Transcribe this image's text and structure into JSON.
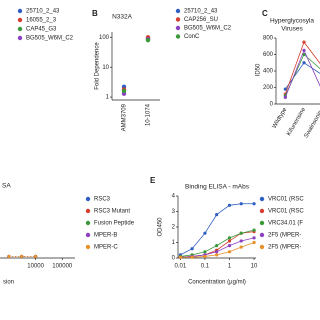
{
  "chart_data": [
    {
      "type": "scatter",
      "series": [
        {
          "name": "25710_2_43",
          "color": "#2f5ec4"
        },
        {
          "name": "16055_2_3",
          "color": "#d43d2f"
        },
        {
          "name": "CAP45_G3",
          "color": "#3a9a3a"
        },
        {
          "name": "BG505_W6M_C2",
          "color": "#8b3fc2"
        }
      ]
    },
    {
      "type": "scatter",
      "label": "B",
      "title": "N332A",
      "ylabel": "Fold Dependence",
      "categories": [
        "AMM3709",
        "10-1074"
      ],
      "series": [
        {
          "name": "25710_2_43",
          "color": "#2f5ec4",
          "values": [
            2.2,
            90
          ]
        },
        {
          "name": "CAP256_SU",
          "color": "#d43d2f",
          "values": [
            1.8,
            100
          ]
        },
        {
          "name": "BG505_W6M_C2",
          "color": "#8b3fc2",
          "values": [
            1.3,
            85
          ]
        },
        {
          "name": "ConC",
          "color": "#3a9a3a",
          "values": [
            1.6,
            80
          ]
        }
      ],
      "ylim": [
        0.8,
        150
      ],
      "yticks": [
        1,
        10,
        100
      ],
      "log_y": true
    },
    {
      "type": "line",
      "label": "C",
      "title": "Hyperglycosyla",
      "subtitle": "Viruses",
      "ylabel": "ID50",
      "categories": [
        "Wildtype",
        "Kifunensine",
        "Swainsonine"
      ],
      "series": [
        {
          "color": "#2f5ec4",
          "values": [
            180,
            500,
            350
          ]
        },
        {
          "color": "#d43d2f",
          "values": [
            120,
            750,
            450
          ]
        },
        {
          "color": "#3a9a3a",
          "values": [
            100,
            600,
            400
          ]
        },
        {
          "color": "#8b3fc2",
          "values": [
            80,
            650,
            150
          ]
        }
      ],
      "ylim": [
        0,
        800
      ],
      "yticks": [
        0,
        200,
        400,
        600,
        800
      ]
    },
    {
      "type": "line",
      "title": "SA",
      "xlabel": "sion",
      "x": [
        1000,
        3000,
        10000
      ],
      "series": [
        {
          "name": "RSC3",
          "color": "#2f5ec4",
          "values": [
            0.1,
            0.1,
            0.1
          ]
        },
        {
          "name": "RSC3 Mutant",
          "color": "#d43d2f",
          "values": [
            0.1,
            0.1,
            0.1
          ]
        },
        {
          "name": "Fusion Peptide",
          "color": "#3a9a3a",
          "values": [
            0.1,
            0.1,
            0.1
          ]
        },
        {
          "name": "MPER-B",
          "color": "#8b3fc2",
          "values": [
            0.1,
            0.1,
            0.1
          ]
        },
        {
          "name": "MPER-C",
          "color": "#e8902a",
          "values": [
            0.1,
            0.1,
            0.1
          ]
        }
      ],
      "xlim": [
        300,
        300000
      ],
      "xticks": [
        10000,
        100000
      ],
      "log_x": true,
      "ylim": [
        0,
        4
      ]
    },
    {
      "type": "line",
      "label": "E",
      "title": "Binding ELISA - mAbs",
      "ylabel": "OD450",
      "xlabel": "Concentration (µg/ml)",
      "x": [
        0.01,
        0.03,
        0.1,
        0.3,
        1,
        3,
        10
      ],
      "series": [
        {
          "name": "VRC01 (RSC",
          "color": "#2f5ec4",
          "values": [
            0.2,
            0.6,
            1.6,
            2.8,
            3.4,
            3.5,
            3.5
          ]
        },
        {
          "name": "VRC01 (RSC",
          "color": "#d43d2f",
          "values": [
            0.05,
            0.1,
            0.2,
            0.5,
            1.1,
            1.6,
            1.7
          ]
        },
        {
          "name": "VRC34.01 (F",
          "color": "#3a9a3a",
          "values": [
            0.1,
            0.2,
            0.4,
            0.8,
            1.3,
            1.6,
            1.8
          ]
        },
        {
          "name": "2F5 (MPER-",
          "color": "#8b3fc2",
          "values": [
            0.05,
            0.1,
            0.2,
            0.4,
            0.8,
            1.1,
            1.3
          ]
        },
        {
          "name": "2F5 (MPER-",
          "color": "#e8902a",
          "values": [
            0.05,
            0.05,
            0.1,
            0.2,
            0.4,
            0.7,
            1.0
          ]
        }
      ],
      "xlim": [
        0.008,
        12
      ],
      "xticks": [
        0.01,
        0.1,
        1,
        10
      ],
      "log_x": true,
      "ylim": [
        0,
        4
      ],
      "yticks": [
        0,
        1,
        2,
        3,
        4
      ]
    }
  ]
}
